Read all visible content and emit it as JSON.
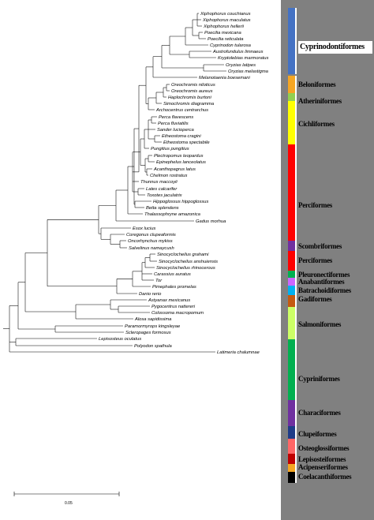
{
  "tree": {
    "scale_label": "0.05",
    "taxa": [
      "Xiphophorus couchianus",
      "Xiphophorus maculatus",
      "Xiphophorus hellerii",
      "Poecilia mexicana",
      "Poecilia reticulata",
      "Cyprinodon tularosa",
      "Austrofundulus limnaeus",
      "Kryptolebias marmoratus",
      "Oryzias latipes",
      "Oryzias melastigma",
      "Melanotaenia boesemani",
      "Oreochromis niloticus",
      "Oreochromis aureus",
      "Haplochromis burtoni",
      "Simochromis diagramma",
      "Archocentrus centrarchus",
      "Perca flavescens",
      "Perca fluviatilis",
      "Sander lucioperca",
      "Etheostoma cragini",
      "Etheostoma spectabile",
      "Pungitius pungitius",
      "Plectropomus leopardus",
      "Epinephelus lanceolatus",
      "Acanthopagrus latus",
      "Chelmon rostratus",
      "Thunnus maccoyii",
      "Lates calcarifer",
      "Toxotes jaculatrix",
      "Hippoglossus hippoglossus",
      "Betta splendens",
      "Thalassophryne amazonica",
      "Gadus morhua",
      "Esox lucius",
      "Coregonus clupeaformis",
      "Oncorhynchus mykiss",
      "Salvelinus namaycush",
      "Sinocyclocheilus grahami",
      "Sinocyclocheilus anshuiensis",
      "Sinocyclocheilus rhinocerous",
      "Carassius auratus",
      "Tor",
      "Pimephales promelas",
      "Danio rerio",
      "Astyanax mexicanus",
      "Pygocentrus nattereri",
      "Colossoma macropomum",
      "Alosa sapidissima",
      "Paramormyrops kingsleyae",
      "Scleropages formosus",
      "Lepisosteus oculatus",
      "Polyodon spathula",
      "Latimeria chalumnae"
    ]
  },
  "orders": [
    {
      "label": "Cyprinodontiformes",
      "color": "#4472c4"
    },
    {
      "label": "Beloniformes",
      "color": "#f5a623"
    },
    {
      "label": "Atheriniformes",
      "color": "#92d050"
    },
    {
      "label": "Cichliformes",
      "color": "#ffff00"
    },
    {
      "label": "Perciformes",
      "color": "#ff0000"
    },
    {
      "label": "Scombriformes",
      "color": "#7030a0"
    },
    {
      "label": "Perciformes",
      "color": "#ff0000"
    },
    {
      "label": "Pleuronectiformes",
      "color": "#00b050"
    },
    {
      "label": "Anabantiformes",
      "color": "#cc66ff"
    },
    {
      "label": "Batrachoidiformes",
      "color": "#00b0f0"
    },
    {
      "label": "Gadiformes",
      "color": "#c55a11"
    },
    {
      "label": "Salmoniformes",
      "color": "#ccff66"
    },
    {
      "label": "Cypriniformes",
      "color": "#00b050"
    },
    {
      "label": "Characiformes",
      "color": "#7030a0"
    },
    {
      "label": "Clupeiformes",
      "color": "#1f3c88"
    },
    {
      "label": "Osteoglossiformes",
      "color": "#ff6666"
    },
    {
      "label": "Lepisosteiformes",
      "color": "#c00000"
    },
    {
      "label": "Acipenseriformes",
      "color": "#f5a623"
    },
    {
      "label": "Coelacanthiformes",
      "color": "#000000"
    }
  ]
}
